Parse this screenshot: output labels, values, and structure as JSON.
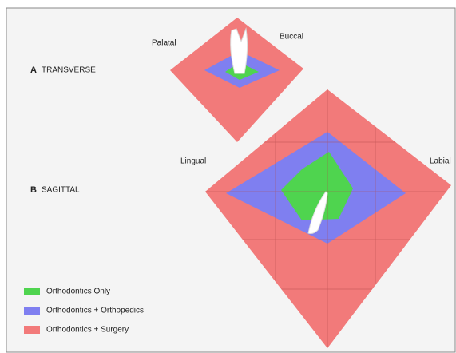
{
  "panel_a": {
    "letter": "A",
    "title": "TRANSVERSE",
    "left_label": "Palatal",
    "right_label": "Buccal"
  },
  "panel_b": {
    "letter": "B",
    "title": "SAGITTAL",
    "left_label": "Lingual",
    "right_label": "Labial"
  },
  "legend": [
    "Orthodontics Only",
    "Orthodontics + Orthopedics",
    "Orthodontics + Surgery"
  ]
}
